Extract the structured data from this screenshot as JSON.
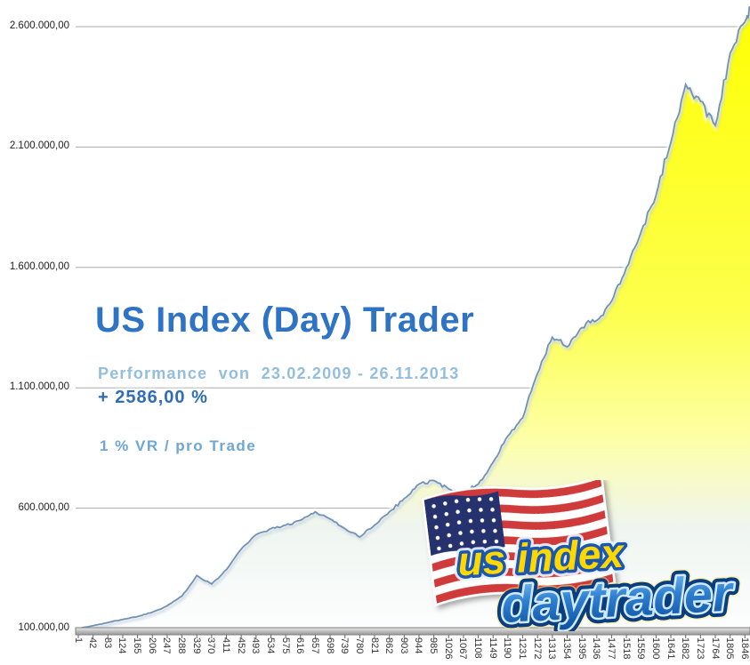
{
  "overlay": {
    "title": "US Index (Day) Trader",
    "performance_line": "Performance  von  23.02.2009 - 26.11.2013",
    "return_line": "+ 2586,00 %",
    "risk_line": "1 % VR / pro Trade"
  },
  "logo": {
    "line1": "us index",
    "line2": "daytrader"
  },
  "y_axis": {
    "labels": [
      "2.600.000,00",
      "2.100.000,00",
      "1.600.000,00",
      "1.100.000,00",
      "600.000,00",
      "100.000,00"
    ],
    "values": [
      2600000,
      2100000,
      1600000,
      1100000,
      600000,
      100000
    ]
  },
  "x_axis": {
    "tick_labels": [
      "1",
      "42",
      "83",
      "124",
      "165",
      "206",
      "247",
      "288",
      "329",
      "370",
      "411",
      "452",
      "493",
      "534",
      "575",
      "616",
      "657",
      "698",
      "739",
      "780",
      "821",
      "862",
      "903",
      "944",
      "985",
      "1026",
      "1067",
      "1108",
      "1149",
      "1190",
      "1231",
      "1272",
      "1313",
      "1354",
      "1395",
      "1436",
      "1477",
      "1518",
      "1559",
      "1600",
      "1641",
      "1682",
      "1723",
      "1764",
      "1805",
      "1846"
    ]
  },
  "colors": {
    "title_text": "#2e73c4",
    "subtitle_text": "#93bede",
    "return_text": "#2f6db8",
    "risk_text": "#6ea6d4",
    "grid_line": "#a8a8a8",
    "axis_text": "#1f1f1f",
    "curve_line": "#7292b5",
    "curve_glow": "#ffffff",
    "axis_bar_light": "#e9e9e9",
    "axis_bar_dark": "#969696",
    "axis_bar_stroke": "#7f7f7f",
    "flag_red": "#cf3a3a",
    "flag_white": "#ffffff",
    "flag_blue": "#26316e",
    "logo_yellow": "#ffd800",
    "logo_yellow_stroke": "#1b57b0",
    "logo_blue_light": "#7cc4f4",
    "logo_blue_mid": "#2f7fd0",
    "logo_blue_deep": "#0d4f9e",
    "logo_blue_stroke": "#cfeaff",
    "logo_blue_outline": "#0a3e7e",
    "area_gradient": [
      [
        "0%",
        "#feff00"
      ],
      [
        "50%",
        "#fdff4d"
      ],
      [
        "70%",
        "#fdffa8"
      ],
      [
        "84%",
        "#eff5f0"
      ],
      [
        "100%",
        "#fdfeff"
      ]
    ]
  },
  "chart_data": {
    "type": "area",
    "title": "US Index (Day) Trader",
    "subtitle": "Performance von 23.02.2009 - 26.11.2013",
    "annotation_return": "+ 2586,00 %",
    "annotation_risk": "1 % VR / pro Trade",
    "xlabel": "",
    "ylabel": "",
    "ylim": [
      100000,
      2600000
    ],
    "xlim": [
      1,
      1860
    ],
    "grid": "horizontal-only",
    "legend": "none",
    "x_ticks": [
      1,
      42,
      83,
      124,
      165,
      206,
      247,
      288,
      329,
      370,
      411,
      452,
      493,
      534,
      575,
      616,
      657,
      698,
      739,
      780,
      821,
      862,
      903,
      944,
      985,
      1026,
      1067,
      1108,
      1149,
      1190,
      1231,
      1272,
      1313,
      1354,
      1395,
      1436,
      1477,
      1518,
      1559,
      1600,
      1641,
      1682,
      1723,
      1764,
      1805,
      1846
    ],
    "points": [
      [
        1,
        100000
      ],
      [
        42,
        112000
      ],
      [
        83,
        125000
      ],
      [
        124,
        138000
      ],
      [
        165,
        150000
      ],
      [
        206,
        168000
      ],
      [
        247,
        195000
      ],
      [
        288,
        235000
      ],
      [
        329,
        320000
      ],
      [
        370,
        285000
      ],
      [
        411,
        345000
      ],
      [
        452,
        430000
      ],
      [
        493,
        490000
      ],
      [
        534,
        515000
      ],
      [
        575,
        530000
      ],
      [
        616,
        550000
      ],
      [
        657,
        585000
      ],
      [
        698,
        555000
      ],
      [
        739,
        515000
      ],
      [
        780,
        480000
      ],
      [
        821,
        530000
      ],
      [
        862,
        585000
      ],
      [
        903,
        640000
      ],
      [
        944,
        700000
      ],
      [
        985,
        715000
      ],
      [
        1026,
        680000
      ],
      [
        1067,
        665000
      ],
      [
        1108,
        700000
      ],
      [
        1149,
        790000
      ],
      [
        1190,
        900000
      ],
      [
        1231,
        975000
      ],
      [
        1272,
        1160000
      ],
      [
        1313,
        1310000
      ],
      [
        1354,
        1270000
      ],
      [
        1395,
        1350000
      ],
      [
        1436,
        1380000
      ],
      [
        1477,
        1460000
      ],
      [
        1518,
        1600000
      ],
      [
        1559,
        1750000
      ],
      [
        1600,
        1900000
      ],
      [
        1641,
        2120000
      ],
      [
        1682,
        2360000
      ],
      [
        1723,
        2290000
      ],
      [
        1764,
        2190000
      ],
      [
        1805,
        2490000
      ],
      [
        1846,
        2620000
      ],
      [
        1860,
        2680000
      ]
    ]
  }
}
